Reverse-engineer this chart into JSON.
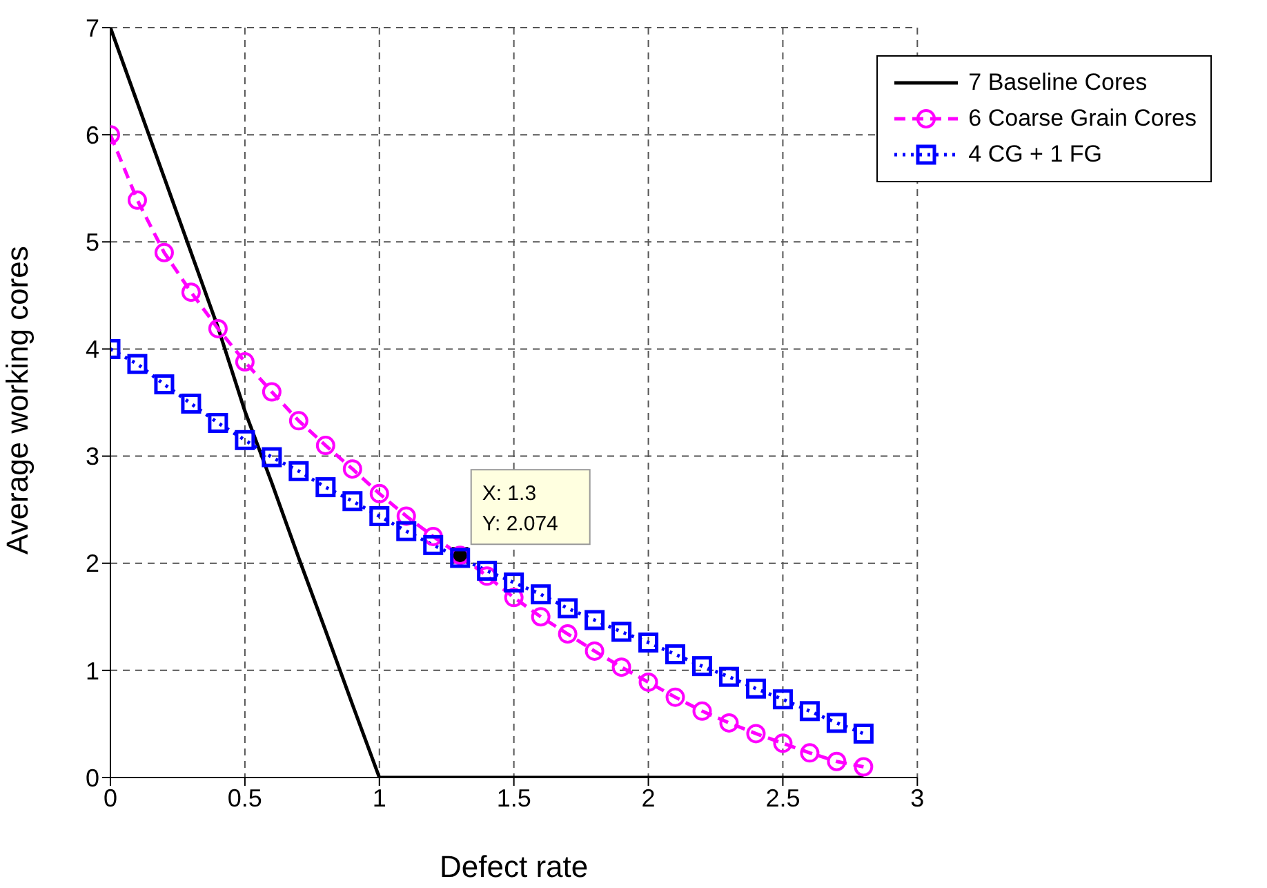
{
  "chart_data": {
    "type": "line",
    "xlabel": "Defect rate",
    "ylabel": "Average working cores",
    "x": [
      0,
      0.1,
      0.2,
      0.3,
      0.4,
      0.5,
      0.6,
      0.7,
      0.8,
      0.9,
      1.0,
      1.1,
      1.2,
      1.3,
      1.4,
      1.5,
      1.6,
      1.7,
      1.8,
      1.9,
      2.0,
      2.1,
      2.2,
      2.3,
      2.4,
      2.5,
      2.6,
      2.7,
      2.8
    ],
    "series": [
      {
        "name": "7 Baseline Cores",
        "color": "#000000",
        "marker": "none",
        "line_style": "solid",
        "values": [
          7,
          6.3,
          5.6,
          4.9,
          4.2,
          3.42,
          2.75,
          2.05,
          1.37,
          0.68,
          0,
          0,
          0,
          0,
          0,
          0,
          0,
          0,
          0,
          0,
          0,
          0,
          0,
          0,
          0,
          0,
          0,
          0,
          0
        ]
      },
      {
        "name": "6 Coarse Grain Cores",
        "color": "#ff00ff",
        "marker": "circle",
        "line_style": "dashed",
        "values": [
          6,
          5.39,
          4.9,
          4.53,
          4.19,
          3.88,
          3.6,
          3.33,
          3.1,
          2.88,
          2.65,
          2.44,
          2.25,
          2.074,
          1.88,
          1.68,
          1.5,
          1.34,
          1.18,
          1.03,
          0.89,
          0.75,
          0.62,
          0.51,
          0.41,
          0.32,
          0.23,
          0.15,
          0.1
        ]
      },
      {
        "name": "4 CG + 1 FG",
        "color": "#0000ff",
        "marker": "square",
        "line_style": "dotted",
        "values": [
          4,
          3.86,
          3.67,
          3.49,
          3.31,
          3.15,
          2.99,
          2.86,
          2.71,
          2.58,
          2.44,
          2.3,
          2.17,
          2.05,
          1.93,
          1.82,
          1.71,
          1.58,
          1.47,
          1.36,
          1.26,
          1.15,
          1.04,
          0.94,
          0.83,
          0.73,
          0.62,
          0.51,
          0.41
        ]
      }
    ],
    "xlim": [
      0,
      3
    ],
    "xticks": [
      0,
      0.5,
      1,
      1.5,
      2,
      2.5,
      3
    ],
    "ylim": [
      0,
      7
    ],
    "yticks": [
      0,
      1,
      2,
      3,
      4,
      5,
      6,
      7
    ],
    "grid": true,
    "legend": "top right",
    "annotations": [
      {
        "text": "X: 1.3\nY: 2.074",
        "x": 1.3,
        "y": 2.074
      }
    ]
  }
}
